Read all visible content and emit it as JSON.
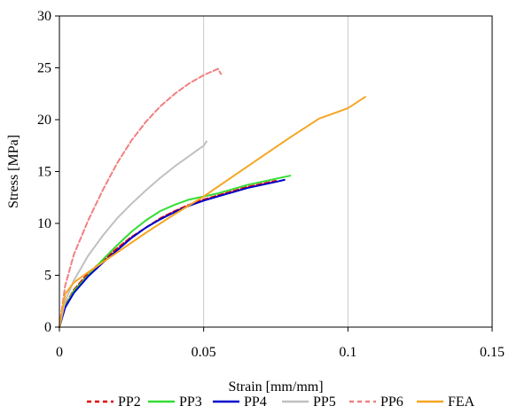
{
  "chart_data": {
    "type": "line",
    "xlabel": "Strain [mm/mm]",
    "ylabel": "Stress [MPa]",
    "xlim": [
      0,
      0.15
    ],
    "ylim": [
      0,
      30
    ],
    "xticks": [
      0,
      0.05,
      0.1,
      0.15
    ],
    "xtick_labels": [
      "0",
      "0.05",
      "0.1",
      "0.15"
    ],
    "yticks": [
      0,
      5,
      10,
      15,
      20,
      25,
      30
    ],
    "ytick_labels": [
      "0",
      "5",
      "10",
      "15",
      "20",
      "25",
      "30"
    ],
    "grid": "vertical",
    "legend_position": "bottom",
    "series": [
      {
        "name": "PP2",
        "color": "#e00000",
        "dash": "dashed",
        "x": [
          0,
          0.002,
          0.005,
          0.01,
          0.015,
          0.02,
          0.025,
          0.03,
          0.035,
          0.04,
          0.045,
          0.05,
          0.055,
          0.06,
          0.065,
          0.07,
          0.075
        ],
        "y": [
          0,
          2.1,
          3.6,
          5.2,
          6.4,
          7.6,
          8.7,
          9.6,
          10.5,
          11.2,
          11.8,
          12.3,
          12.7,
          13.1,
          13.5,
          13.8,
          14.1
        ]
      },
      {
        "name": "PP3",
        "color": "#33dd33",
        "dash": "solid",
        "x": [
          0,
          0.002,
          0.005,
          0.01,
          0.015,
          0.02,
          0.025,
          0.03,
          0.035,
          0.04,
          0.045,
          0.05,
          0.055,
          0.06,
          0.065,
          0.07,
          0.075,
          0.08
        ],
        "y": [
          0,
          2.0,
          3.5,
          5.0,
          6.5,
          7.9,
          9.2,
          10.3,
          11.2,
          11.8,
          12.3,
          12.6,
          12.9,
          13.3,
          13.7,
          14.0,
          14.3,
          14.6
        ]
      },
      {
        "name": "PP4",
        "color": "#0000cc",
        "dash": "solid",
        "x": [
          0,
          0.002,
          0.005,
          0.01,
          0.015,
          0.02,
          0.025,
          0.03,
          0.035,
          0.04,
          0.045,
          0.05,
          0.055,
          0.06,
          0.065,
          0.07,
          0.075,
          0.078
        ],
        "y": [
          0,
          1.9,
          3.3,
          4.9,
          6.2,
          7.4,
          8.6,
          9.6,
          10.4,
          11.1,
          11.7,
          12.2,
          12.6,
          13.0,
          13.4,
          13.7,
          14.0,
          14.2
        ]
      },
      {
        "name": "PP5",
        "color": "#c0c0c0",
        "dash": "solid",
        "x": [
          0,
          0.002,
          0.005,
          0.01,
          0.015,
          0.02,
          0.025,
          0.03,
          0.035,
          0.04,
          0.045,
          0.05,
          0.051
        ],
        "y": [
          0,
          2.5,
          4.5,
          6.9,
          8.8,
          10.5,
          11.9,
          13.2,
          14.4,
          15.5,
          16.5,
          17.5,
          17.9
        ]
      },
      {
        "name": "PP6",
        "color": "#f08080",
        "dash": "dashed",
        "x": [
          0,
          0.002,
          0.005,
          0.01,
          0.015,
          0.02,
          0.025,
          0.03,
          0.035,
          0.04,
          0.045,
          0.05,
          0.055,
          0.056
        ],
        "y": [
          0,
          4.0,
          7.0,
          10.3,
          13.2,
          15.8,
          18.0,
          19.8,
          21.3,
          22.5,
          23.5,
          24.3,
          24.9,
          24.4
        ]
      },
      {
        "name": "FEA",
        "color": "#f5a623",
        "dash": "solid",
        "x": [
          0,
          0.002,
          0.005,
          0.01,
          0.02,
          0.03,
          0.04,
          0.05,
          0.06,
          0.07,
          0.08,
          0.09,
          0.1,
          0.106
        ],
        "y": [
          0,
          3.2,
          4.3,
          5.3,
          7.2,
          9.1,
          10.9,
          12.6,
          14.5,
          16.4,
          18.3,
          20.1,
          21.1,
          22.2
        ]
      }
    ]
  }
}
